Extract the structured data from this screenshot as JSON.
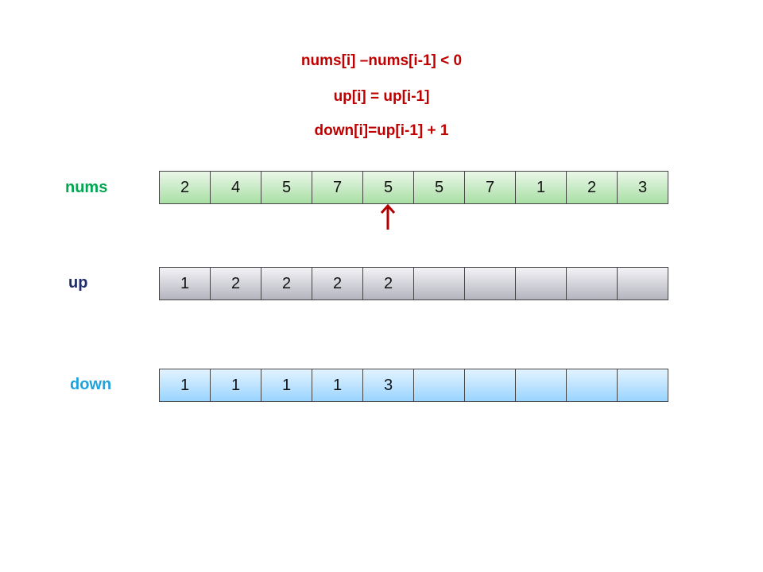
{
  "formulas": {
    "line1": "nums[i] –nums[i-1] < 0",
    "line2": "up[i] = up[i-1]",
    "line3": "down[i]=up[i-1] + 1"
  },
  "labels": {
    "nums": "nums",
    "up": "up",
    "down": "down"
  },
  "arrays": {
    "nums": [
      "2",
      "4",
      "5",
      "7",
      "5",
      "5",
      "7",
      "1",
      "2",
      "3"
    ],
    "up": [
      "1",
      "2",
      "2",
      "2",
      "2",
      "",
      "",
      "",
      "",
      ""
    ],
    "down": [
      "1",
      "1",
      "1",
      "1",
      "3",
      "",
      "",
      "",
      "",
      ""
    ]
  },
  "pointer_index": 4,
  "colors": {
    "formula": "#c00000",
    "nums_label": "#00a651",
    "up_label": "#1f2d6b",
    "down_label": "#1fa3e0",
    "pointer": "#b00000"
  }
}
